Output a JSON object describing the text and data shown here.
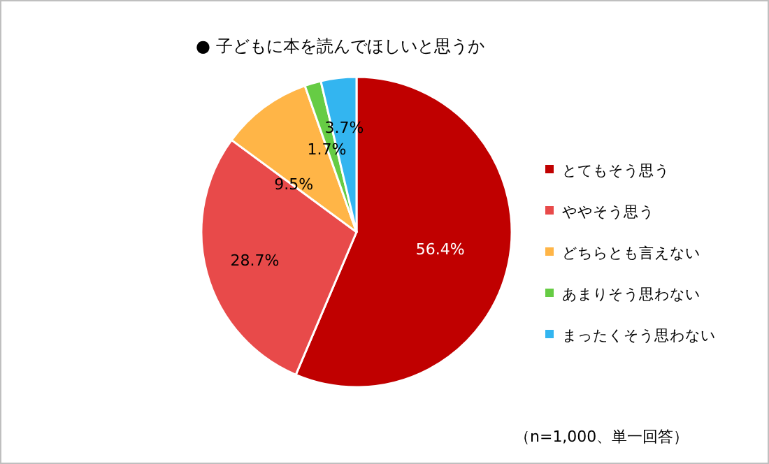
{
  "chart_data": {
    "type": "pie",
    "title": "● 子どもに本を読んでほしいと思うか",
    "categories": [
      "とてもそう思う",
      "ややそう思う",
      "どちらとも言えない",
      "あまりそう思わない",
      "まったくそう思わない"
    ],
    "values": [
      56.4,
      28.7,
      9.5,
      1.7,
      3.7
    ],
    "value_labels": [
      "56.4%",
      "28.7%",
      "9.5%",
      "1.7%",
      "3.7%"
    ],
    "colors": [
      "#c00000",
      "#e84a4a",
      "#ffb547",
      "#66cc44",
      "#33b5f0"
    ],
    "legend": "right",
    "annotations": [
      "（n=1,000、単一回答）"
    ]
  }
}
